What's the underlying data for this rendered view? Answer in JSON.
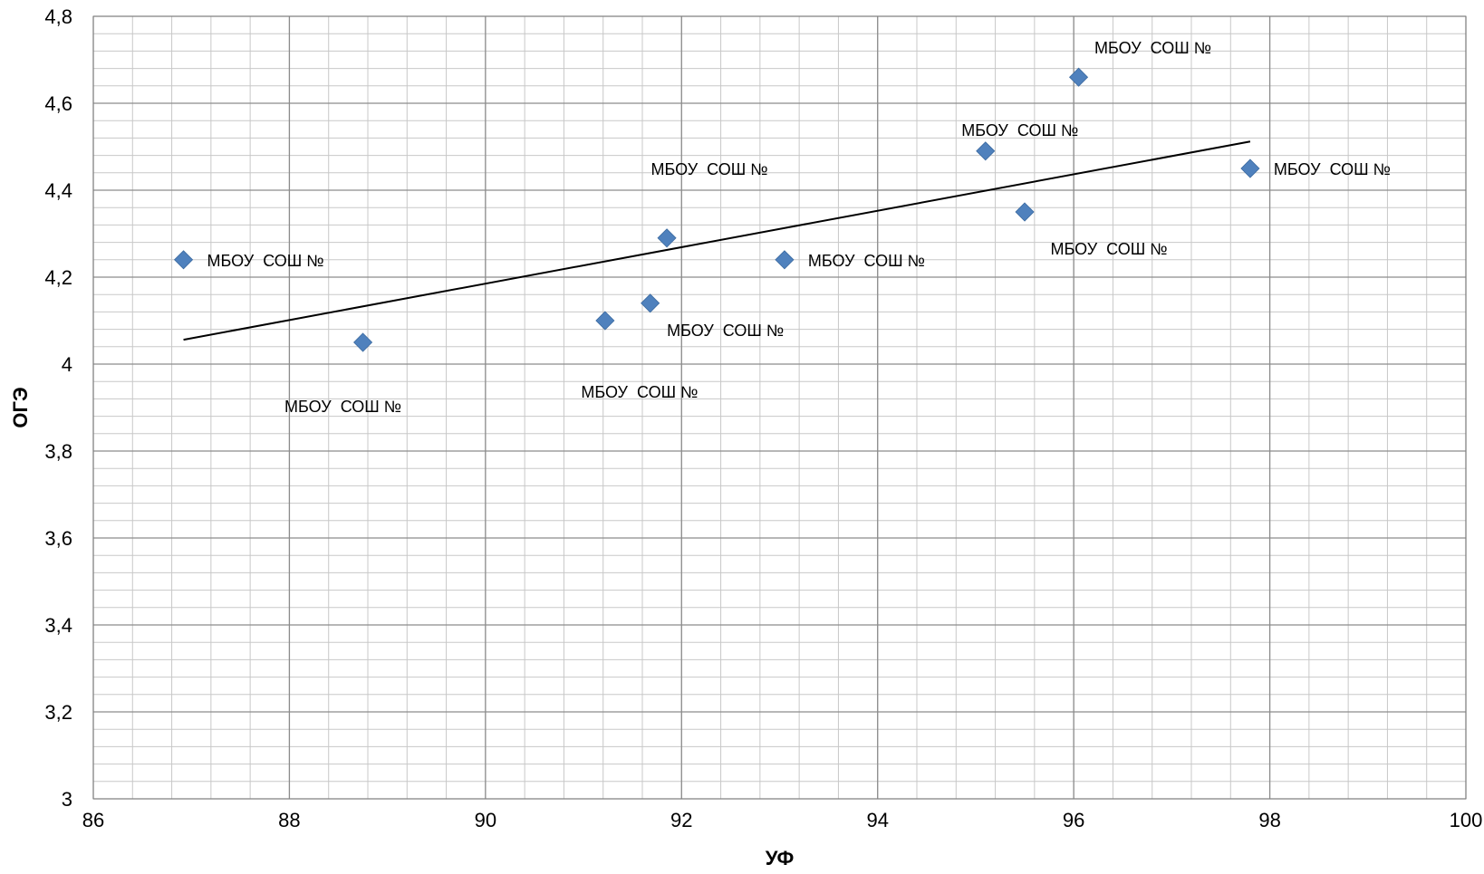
{
  "chart_data": {
    "type": "scatter",
    "title": "",
    "xlabel": "УФ",
    "ylabel": "ОГЭ",
    "xlim": [
      86,
      100
    ],
    "ylim": [
      3,
      4.8
    ],
    "x_major_step": 2,
    "x_minor_step": 0.4,
    "y_major_step": 0.2,
    "y_minor_step": 0.04,
    "x_tick_labels": [
      "86",
      "88",
      "90",
      "92",
      "94",
      "96",
      "98",
      "100"
    ],
    "y_tick_labels": [
      "3",
      "3,2",
      "3,4",
      "3,6",
      "3,8",
      "4",
      "4,2",
      "4,4",
      "4,6",
      "4,8"
    ],
    "grid": true,
    "legend": "none",
    "marker": "diamond",
    "marker_color": "#4F81BD",
    "trendline": {
      "type": "linear",
      "color": "#000000",
      "x": [
        86.92,
        97.8
      ],
      "y": [
        4.056,
        4.512
      ]
    },
    "points": [
      {
        "x": 86.92,
        "y": 4.24,
        "label": "МБОУ  СОШ №"
      },
      {
        "x": 88.75,
        "y": 4.05,
        "label": "МБОУ  СОШ №"
      },
      {
        "x": 91.22,
        "y": 4.1,
        "label": "МБОУ  СОШ №"
      },
      {
        "x": 91.68,
        "y": 4.14,
        "label": "МБОУ  СОШ №"
      },
      {
        "x": 91.85,
        "y": 4.29,
        "label": "МБОУ  СОШ №"
      },
      {
        "x": 93.05,
        "y": 4.24,
        "label": "МБОУ  СОШ №"
      },
      {
        "x": 95.1,
        "y": 4.49,
        "label": "МБОУ  СОШ №"
      },
      {
        "x": 95.5,
        "y": 4.35,
        "label": "МБОУ  СОШ №"
      },
      {
        "x": 96.05,
        "y": 4.66,
        "label": "МБОУ  СОШ №"
      },
      {
        "x": 97.8,
        "y": 4.45,
        "label": "МБОУ  СОШ №"
      }
    ]
  }
}
